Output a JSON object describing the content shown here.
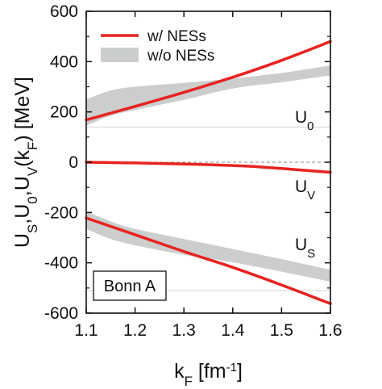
{
  "chart_data": {
    "type": "line",
    "xlim": [
      1.1,
      1.6
    ],
    "ylim": [
      -600,
      600
    ],
    "xticks": [
      1.1,
      1.2,
      1.3,
      1.4,
      1.5,
      1.6
    ],
    "yticks": [
      -600,
      -400,
      -200,
      0,
      200,
      400,
      600
    ],
    "xlabel": {
      "base": "k",
      "sub": "F",
      "rest": " [fm",
      "sup": "-1",
      "end": "]"
    },
    "ylabel": {
      "parts": [
        {
          "t": "U"
        },
        {
          "t": "S",
          "sub": true
        },
        {
          "t": ",U"
        },
        {
          "t": "0",
          "sub": true
        },
        {
          "t": ",U"
        },
        {
          "t": "V",
          "sub": true
        },
        {
          "t": "(k"
        },
        {
          "t": "F",
          "sub": true
        },
        {
          "t": ") [MeV]"
        }
      ]
    },
    "legend": [
      {
        "label": "w/ NESs",
        "kind": "line",
        "color": "#e8231f"
      },
      {
        "label": "w/o NESs",
        "kind": "band",
        "color": "#cbcecc"
      }
    ],
    "tag": "Bonn A",
    "series_labels": [
      {
        "base": "U",
        "sub": "0"
      },
      {
        "base": "U",
        "sub": "V"
      },
      {
        "base": "U",
        "sub": "S"
      }
    ],
    "series": [
      {
        "name": "w/ NESs",
        "curve": "U0",
        "x": [
          1.1,
          1.2,
          1.3,
          1.4,
          1.5,
          1.6
        ],
        "y": [
          168,
          222,
          278,
          338,
          405,
          480
        ]
      },
      {
        "name": "w/ NESs",
        "curve": "UV",
        "x": [
          1.1,
          1.2,
          1.3,
          1.4,
          1.45,
          1.5,
          1.6
        ],
        "y": [
          0,
          -3,
          -7,
          -13,
          -18,
          -25,
          -40
        ]
      },
      {
        "name": "w/ NESs",
        "curve": "US",
        "x": [
          1.1,
          1.2,
          1.3,
          1.4,
          1.5,
          1.6
        ],
        "y": [
          -222,
          -288,
          -355,
          -418,
          -488,
          -562
        ]
      }
    ],
    "bands": [
      {
        "name": "w/o NESs",
        "curve": "U0",
        "x": [
          1.1,
          1.15,
          1.2,
          1.3,
          1.4,
          1.5,
          1.6
        ],
        "upper": [
          250,
          285,
          300,
          315,
          333,
          355,
          385
        ],
        "lower": [
          145,
          185,
          208,
          248,
          293,
          318,
          345
        ]
      },
      {
        "name": "w/o NESs",
        "curve": "US",
        "x": [
          1.1,
          1.15,
          1.2,
          1.3,
          1.4,
          1.5,
          1.6
        ],
        "upper": [
          -195,
          -235,
          -265,
          -305,
          -345,
          -385,
          -428
        ],
        "lower": [
          -265,
          -305,
          -330,
          -368,
          -398,
          -435,
          -475
        ]
      }
    ],
    "zero_line": {
      "y": 0,
      "style": "dashed"
    },
    "reference_lines": [
      {
        "y": 140
      },
      {
        "y": -510
      }
    ]
  }
}
